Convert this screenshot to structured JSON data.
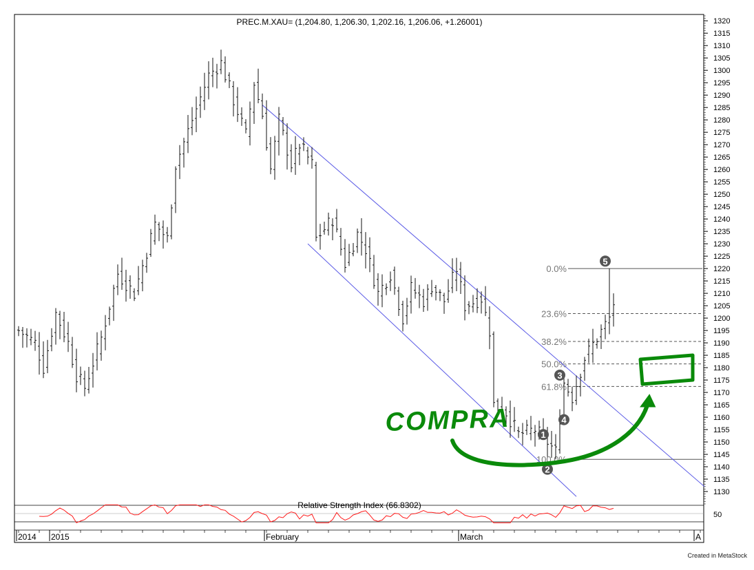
{
  "chart_data": {
    "type": "ohlc-bar",
    "title": "PREC.M.XAU= (1,204.80, 1,206.30, 1,202.16, 1,206.06, +1.26001)",
    "ylim": [
      1125,
      1322
    ],
    "y_ticks": [
      1130,
      1135,
      1140,
      1145,
      1150,
      1155,
      1160,
      1165,
      1170,
      1175,
      1180,
      1185,
      1190,
      1195,
      1200,
      1205,
      1210,
      1215,
      1220,
      1225,
      1230,
      1235,
      1240,
      1245,
      1250,
      1255,
      1260,
      1265,
      1270,
      1275,
      1280,
      1285,
      1290,
      1295,
      1300,
      1305,
      1310,
      1315,
      1320
    ],
    "x_labels": [
      {
        "text": "2014",
        "i": 0
      },
      {
        "text": "2015",
        "i": 8
      },
      {
        "text": "February",
        "i": 60
      },
      {
        "text": "March",
        "i": 107
      },
      {
        "text": "A",
        "i": 164
      }
    ],
    "anchor_closes": [
      [
        0,
        1195
      ],
      [
        4,
        1190
      ],
      [
        6,
        1180
      ],
      [
        9,
        1202
      ],
      [
        12,
        1190
      ],
      [
        14,
        1177
      ],
      [
        16,
        1172
      ],
      [
        20,
        1192
      ],
      [
        24,
        1218
      ],
      [
        28,
        1210
      ],
      [
        33,
        1238
      ],
      [
        36,
        1232
      ],
      [
        38,
        1262
      ],
      [
        42,
        1280
      ],
      [
        46,
        1298
      ],
      [
        49,
        1303
      ],
      [
        52,
        1288
      ],
      [
        55,
        1274
      ],
      [
        57,
        1295
      ],
      [
        59,
        1282
      ],
      [
        61,
        1260
      ],
      [
        63,
        1280
      ],
      [
        66,
        1262
      ],
      [
        68,
        1270
      ],
      [
        71,
        1262
      ],
      [
        72,
        1232
      ],
      [
        76,
        1240
      ],
      [
        79,
        1222
      ],
      [
        82,
        1234
      ],
      [
        84,
        1228
      ],
      [
        87,
        1210
      ],
      [
        90,
        1218
      ],
      [
        93,
        1200
      ],
      [
        95,
        1212
      ],
      [
        98,
        1207
      ],
      [
        100,
        1213
      ],
      [
        103,
        1207
      ],
      [
        106,
        1220
      ],
      [
        108,
        1205
      ],
      [
        112,
        1208
      ],
      [
        114,
        1195
      ],
      [
        115,
        1165
      ],
      [
        118,
        1162
      ],
      [
        121,
        1153
      ],
      [
        125,
        1155
      ],
      [
        128,
        1150
      ],
      [
        130,
        1146
      ],
      [
        131,
        1160
      ],
      [
        132,
        1174
      ],
      [
        134,
        1168
      ],
      [
        137,
        1184
      ],
      [
        140,
        1192
      ],
      [
        143,
        1200
      ],
      [
        144,
        1206
      ]
    ],
    "fibonacci": {
      "high": 1220,
      "low": 1143,
      "levels": [
        {
          "label": "0.0%",
          "ratio": 0
        },
        {
          "label": "23.6%",
          "ratio": 0.236
        },
        {
          "label": "38.2%",
          "ratio": 0.382
        },
        {
          "label": "50.0%",
          "ratio": 0.5
        },
        {
          "label": "61.8%",
          "ratio": 0.618
        },
        {
          "label": "100.0%",
          "ratio": 1
        }
      ]
    },
    "wave_markers": [
      {
        "label": "1",
        "i": 127,
        "y": 1153
      },
      {
        "label": "2",
        "i": 128,
        "y": 1139
      },
      {
        "label": "3",
        "i": 131,
        "y": 1177
      },
      {
        "label": "4",
        "i": 132,
        "y": 1159
      },
      {
        "label": "5",
        "i": 142,
        "y": 1223
      }
    ],
    "channel": {
      "upper": [
        [
          59,
          1286
        ],
        [
          166,
          1132
        ]
      ],
      "lower": [
        [
          70,
          1230
        ],
        [
          135,
          1128
        ]
      ]
    },
    "rsi": {
      "label": "Relative Strength Index (66.8302)",
      "tick": "50",
      "last": 66.8302
    },
    "annotation": {
      "text": "COMPRA",
      "color": "#0a8a0a"
    },
    "line_colors": {
      "bars": "#111111",
      "channel": "#5a5ae6",
      "rsi": "#ff1a1a",
      "fib": "#555555",
      "marker": "#555555"
    }
  },
  "footer": "Created in MetaStock"
}
